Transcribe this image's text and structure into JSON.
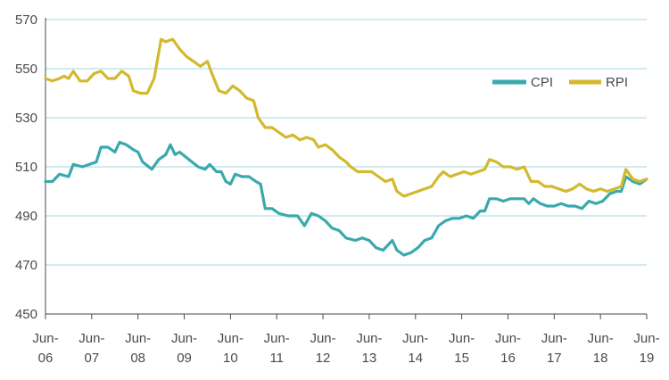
{
  "colors": {
    "CPI": "#3aa9ad",
    "RPI": "#d2b92e",
    "grid": "#9fd9e0",
    "axis": "#4a4a4a",
    "text": "#4a4a4a"
  },
  "chart_data": {
    "type": "line",
    "title": "",
    "xlabel": "",
    "ylabel": "",
    "ylim": [
      450,
      570
    ],
    "yticks": [
      450,
      470,
      490,
      510,
      530,
      550,
      570
    ],
    "xlim": [
      2006,
      2019
    ],
    "xticks": [
      {
        "x": 2006,
        "top": "Jun-",
        "bottom": "06"
      },
      {
        "x": 2007,
        "top": "Jun-",
        "bottom": "07"
      },
      {
        "x": 2008,
        "top": "Jun-",
        "bottom": "08"
      },
      {
        "x": 2009,
        "top": "Jun-",
        "bottom": "09"
      },
      {
        "x": 2010,
        "top": "Jun-",
        "bottom": "10"
      },
      {
        "x": 2011,
        "top": "Jun-",
        "bottom": "11"
      },
      {
        "x": 2012,
        "top": "Jun-",
        "bottom": "12"
      },
      {
        "x": 2013,
        "top": "Jun-",
        "bottom": "13"
      },
      {
        "x": 2014,
        "top": "Jun-",
        "bottom": "14"
      },
      {
        "x": 2015,
        "top": "Jun-",
        "bottom": "15"
      },
      {
        "x": 2016,
        "top": "Jun-",
        "bottom": "16"
      },
      {
        "x": 2017,
        "top": "Jun-",
        "bottom": "17"
      },
      {
        "x": 2018,
        "top": "Jun-",
        "bottom": "18"
      },
      {
        "x": 2019,
        "top": "Jun-",
        "bottom": "19"
      }
    ],
    "grid": true,
    "legend_position": "upper-right",
    "series": [
      {
        "name": "CPI",
        "points": [
          [
            2006.0,
            504
          ],
          [
            2006.15,
            504
          ],
          [
            2006.3,
            507
          ],
          [
            2006.5,
            506
          ],
          [
            2006.6,
            511
          ],
          [
            2006.8,
            510
          ],
          [
            2006.95,
            511
          ],
          [
            2007.1,
            512
          ],
          [
            2007.2,
            518
          ],
          [
            2007.35,
            518
          ],
          [
            2007.5,
            516
          ],
          [
            2007.6,
            520
          ],
          [
            2007.75,
            519
          ],
          [
            2007.9,
            517
          ],
          [
            2008.0,
            516
          ],
          [
            2008.1,
            512
          ],
          [
            2008.3,
            509
          ],
          [
            2008.45,
            513
          ],
          [
            2008.6,
            515
          ],
          [
            2008.7,
            519
          ],
          [
            2008.8,
            515
          ],
          [
            2008.9,
            516
          ],
          [
            2009.1,
            513
          ],
          [
            2009.3,
            510
          ],
          [
            2009.45,
            509
          ],
          [
            2009.55,
            511
          ],
          [
            2009.7,
            508
          ],
          [
            2009.8,
            508
          ],
          [
            2009.9,
            504
          ],
          [
            2010.0,
            503
          ],
          [
            2010.1,
            507
          ],
          [
            2010.25,
            506
          ],
          [
            2010.4,
            506
          ],
          [
            2010.55,
            504
          ],
          [
            2010.65,
            503
          ],
          [
            2010.75,
            493
          ],
          [
            2010.9,
            493
          ],
          [
            2011.05,
            491
          ],
          [
            2011.25,
            490
          ],
          [
            2011.45,
            490
          ],
          [
            2011.6,
            486
          ],
          [
            2011.75,
            491
          ],
          [
            2011.9,
            490
          ],
          [
            2012.05,
            488
          ],
          [
            2012.2,
            485
          ],
          [
            2012.35,
            484
          ],
          [
            2012.5,
            481
          ],
          [
            2012.7,
            480
          ],
          [
            2012.85,
            481
          ],
          [
            2013.0,
            480
          ],
          [
            2013.15,
            477
          ],
          [
            2013.3,
            476
          ],
          [
            2013.4,
            478
          ],
          [
            2013.5,
            480
          ],
          [
            2013.6,
            476
          ],
          [
            2013.75,
            474
          ],
          [
            2013.9,
            475
          ],
          [
            2014.05,
            477
          ],
          [
            2014.2,
            480
          ],
          [
            2014.35,
            481
          ],
          [
            2014.5,
            486
          ],
          [
            2014.65,
            488
          ],
          [
            2014.8,
            489
          ],
          [
            2014.95,
            489
          ],
          [
            2015.1,
            490
          ],
          [
            2015.25,
            489
          ],
          [
            2015.4,
            492
          ],
          [
            2015.5,
            492
          ],
          [
            2015.6,
            497
          ],
          [
            2015.75,
            497
          ],
          [
            2015.9,
            496
          ],
          [
            2016.05,
            497
          ],
          [
            2016.2,
            497
          ],
          [
            2016.35,
            497
          ],
          [
            2016.45,
            495
          ],
          [
            2016.55,
            497
          ],
          [
            2016.7,
            495
          ],
          [
            2016.85,
            494
          ],
          [
            2017.0,
            494
          ],
          [
            2017.15,
            495
          ],
          [
            2017.3,
            494
          ],
          [
            2017.45,
            494
          ],
          [
            2017.6,
            493
          ],
          [
            2017.75,
            496
          ],
          [
            2017.9,
            495
          ],
          [
            2018.05,
            496
          ],
          [
            2018.2,
            499
          ],
          [
            2018.35,
            500
          ],
          [
            2018.45,
            500
          ],
          [
            2018.55,
            506
          ],
          [
            2018.7,
            504
          ],
          [
            2018.85,
            503
          ],
          [
            2019.0,
            505
          ]
        ]
      },
      {
        "name": "RPI",
        "points": [
          [
            2006.0,
            546
          ],
          [
            2006.15,
            545
          ],
          [
            2006.3,
            546
          ],
          [
            2006.4,
            547
          ],
          [
            2006.5,
            546
          ],
          [
            2006.6,
            549
          ],
          [
            2006.75,
            545
          ],
          [
            2006.9,
            545
          ],
          [
            2007.05,
            548
          ],
          [
            2007.2,
            549
          ],
          [
            2007.35,
            546
          ],
          [
            2007.5,
            546
          ],
          [
            2007.65,
            549
          ],
          [
            2007.8,
            547
          ],
          [
            2007.9,
            541
          ],
          [
            2008.05,
            540
          ],
          [
            2008.2,
            540
          ],
          [
            2008.35,
            546
          ],
          [
            2008.5,
            562
          ],
          [
            2008.6,
            561
          ],
          [
            2008.75,
            562
          ],
          [
            2008.9,
            558
          ],
          [
            2009.05,
            555
          ],
          [
            2009.2,
            553
          ],
          [
            2009.35,
            551
          ],
          [
            2009.5,
            553
          ],
          [
            2009.6,
            548
          ],
          [
            2009.75,
            541
          ],
          [
            2009.9,
            540
          ],
          [
            2010.05,
            543
          ],
          [
            2010.2,
            541
          ],
          [
            2010.35,
            538
          ],
          [
            2010.5,
            537
          ],
          [
            2010.6,
            530
          ],
          [
            2010.75,
            526
          ],
          [
            2010.9,
            526
          ],
          [
            2011.05,
            524
          ],
          [
            2011.2,
            522
          ],
          [
            2011.35,
            523
          ],
          [
            2011.5,
            521
          ],
          [
            2011.65,
            522
          ],
          [
            2011.8,
            521
          ],
          [
            2011.9,
            518
          ],
          [
            2012.05,
            519
          ],
          [
            2012.2,
            517
          ],
          [
            2012.35,
            514
          ],
          [
            2012.5,
            512
          ],
          [
            2012.6,
            510
          ],
          [
            2012.75,
            508
          ],
          [
            2012.9,
            508
          ],
          [
            2013.05,
            508
          ],
          [
            2013.2,
            506
          ],
          [
            2013.35,
            504
          ],
          [
            2013.5,
            505
          ],
          [
            2013.6,
            500
          ],
          [
            2013.75,
            498
          ],
          [
            2013.9,
            499
          ],
          [
            2014.05,
            500
          ],
          [
            2014.2,
            501
          ],
          [
            2014.35,
            502
          ],
          [
            2014.5,
            506
          ],
          [
            2014.6,
            508
          ],
          [
            2014.75,
            506
          ],
          [
            2014.9,
            507
          ],
          [
            2015.05,
            508
          ],
          [
            2015.2,
            507
          ],
          [
            2015.35,
            508
          ],
          [
            2015.5,
            509
          ],
          [
            2015.6,
            513
          ],
          [
            2015.75,
            512
          ],
          [
            2015.9,
            510
          ],
          [
            2016.05,
            510
          ],
          [
            2016.2,
            509
          ],
          [
            2016.35,
            510
          ],
          [
            2016.5,
            504
          ],
          [
            2016.65,
            504
          ],
          [
            2016.8,
            502
          ],
          [
            2016.95,
            502
          ],
          [
            2017.1,
            501
          ],
          [
            2017.25,
            500
          ],
          [
            2017.4,
            501
          ],
          [
            2017.55,
            503
          ],
          [
            2017.7,
            501
          ],
          [
            2017.85,
            500
          ],
          [
            2018.0,
            501
          ],
          [
            2018.15,
            500
          ],
          [
            2018.3,
            501
          ],
          [
            2018.45,
            502
          ],
          [
            2018.55,
            509
          ],
          [
            2018.7,
            505
          ],
          [
            2018.85,
            504
          ],
          [
            2019.0,
            505
          ]
        ]
      }
    ]
  }
}
